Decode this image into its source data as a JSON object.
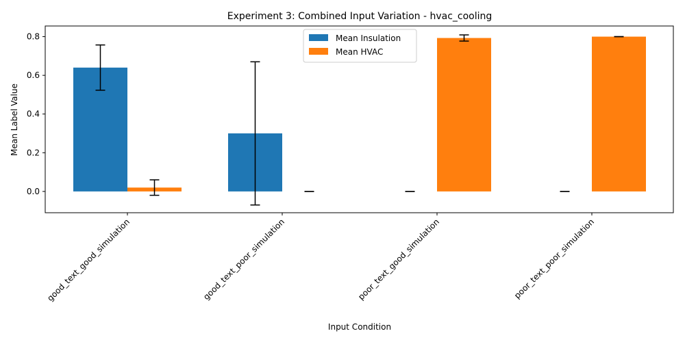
{
  "chart_data": {
    "type": "bar",
    "title": "Experiment 3: Combined Input Variation - hvac_cooling",
    "xlabel": "Input Condition",
    "ylabel": "Mean Label Value",
    "categories": [
      "good_text_good_simulation",
      "good_text_poor_simulation",
      "poor_text_good_simulation",
      "poor_text_poor_simulation"
    ],
    "series": [
      {
        "name": "Mean Insulation",
        "color": "#1f77b4",
        "values": [
          0.64,
          0.3,
          0.0,
          0.0
        ],
        "errors": [
          0.117,
          0.37,
          0.0,
          0.0
        ]
      },
      {
        "name": "Mean HVAC",
        "color": "#ff7f0e",
        "values": [
          0.02,
          0.0,
          0.793,
          0.8
        ],
        "errors": [
          0.04,
          0.0,
          0.016,
          0.0
        ]
      }
    ],
    "ylim": [
      -0.11,
      0.855
    ],
    "yticks": [
      0.0,
      0.2,
      0.4,
      0.6,
      0.8
    ],
    "ytick_labels": [
      "0.0",
      "0.2",
      "0.4",
      "0.6",
      "0.8"
    ],
    "grid": false,
    "legend_position": "upper center"
  }
}
